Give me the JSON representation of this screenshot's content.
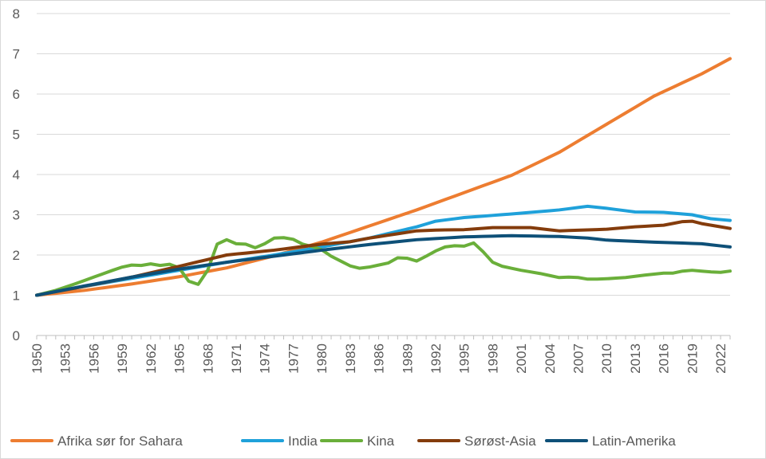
{
  "chart_data": {
    "type": "line",
    "title": "",
    "xlabel": "",
    "ylabel": "",
    "ylim": [
      0,
      8
    ],
    "yticks": [
      0,
      1,
      2,
      3,
      4,
      5,
      6,
      7,
      8
    ],
    "grid": "horizontal",
    "legend_position": "bottom",
    "x_start": 1950,
    "x_end": 2023,
    "x_tick_labels": [
      "1950",
      "1953",
      "1956",
      "1959",
      "1962",
      "1965",
      "1968",
      "1971",
      "1974",
      "1977",
      "1980",
      "1983",
      "1986",
      "1989",
      "1992",
      "1995",
      "1998",
      "2001",
      "2004",
      "2007",
      "2010",
      "2013",
      "2016",
      "2019",
      "2022"
    ],
    "series": [
      {
        "name": "Afrika sør for Sahara",
        "color": "#ED7D31",
        "anchors": [
          [
            1950,
            1.0
          ],
          [
            1955,
            1.12
          ],
          [
            1960,
            1.28
          ],
          [
            1965,
            1.46
          ],
          [
            1970,
            1.68
          ],
          [
            1975,
            1.98
          ],
          [
            1980,
            2.32
          ],
          [
            1985,
            2.72
          ],
          [
            1990,
            3.12
          ],
          [
            1995,
            3.55
          ],
          [
            2000,
            3.98
          ],
          [
            2005,
            4.55
          ],
          [
            2010,
            5.25
          ],
          [
            2015,
            5.95
          ],
          [
            2020,
            6.5
          ],
          [
            2023,
            6.88
          ]
        ]
      },
      {
        "name": "India",
        "color": "#1FA1DA",
        "anchors": [
          [
            1950,
            1.0
          ],
          [
            1955,
            1.22
          ],
          [
            1960,
            1.42
          ],
          [
            1965,
            1.62
          ],
          [
            1970,
            1.82
          ],
          [
            1975,
            2.0
          ],
          [
            1980,
            2.2
          ],
          [
            1985,
            2.42
          ],
          [
            1990,
            2.7
          ],
          [
            1992,
            2.84
          ],
          [
            1995,
            2.93
          ],
          [
            2000,
            3.02
          ],
          [
            2005,
            3.12
          ],
          [
            2008,
            3.21
          ],
          [
            2010,
            3.16
          ],
          [
            2013,
            3.07
          ],
          [
            2016,
            3.06
          ],
          [
            2019,
            3.0
          ],
          [
            2021,
            2.9
          ],
          [
            2023,
            2.86
          ]
        ]
      },
      {
        "name": "Kina",
        "color": "#6AAF3A",
        "anchors": [
          [
            1950,
            1.0
          ],
          [
            1952,
            1.12
          ],
          [
            1954,
            1.28
          ],
          [
            1956,
            1.45
          ],
          [
            1958,
            1.62
          ],
          [
            1959,
            1.7
          ],
          [
            1960,
            1.75
          ],
          [
            1961,
            1.74
          ],
          [
            1962,
            1.78
          ],
          [
            1963,
            1.74
          ],
          [
            1964,
            1.77
          ],
          [
            1965,
            1.68
          ],
          [
            1966,
            1.35
          ],
          [
            1967,
            1.27
          ],
          [
            1968,
            1.62
          ],
          [
            1969,
            2.27
          ],
          [
            1970,
            2.38
          ],
          [
            1971,
            2.28
          ],
          [
            1972,
            2.27
          ],
          [
            1973,
            2.18
          ],
          [
            1974,
            2.28
          ],
          [
            1975,
            2.42
          ],
          [
            1976,
            2.43
          ],
          [
            1977,
            2.39
          ],
          [
            1978,
            2.27
          ],
          [
            1979,
            2.21
          ],
          [
            1980,
            2.13
          ],
          [
            1981,
            1.97
          ],
          [
            1982,
            1.85
          ],
          [
            1983,
            1.73
          ],
          [
            1984,
            1.67
          ],
          [
            1985,
            1.7
          ],
          [
            1986,
            1.75
          ],
          [
            1987,
            1.8
          ],
          [
            1988,
            1.93
          ],
          [
            1989,
            1.92
          ],
          [
            1990,
            1.85
          ],
          [
            1991,
            1.97
          ],
          [
            1992,
            2.1
          ],
          [
            1993,
            2.2
          ],
          [
            1994,
            2.23
          ],
          [
            1995,
            2.22
          ],
          [
            1996,
            2.3
          ],
          [
            1997,
            2.08
          ],
          [
            1998,
            1.82
          ],
          [
            1999,
            1.72
          ],
          [
            2000,
            1.67
          ],
          [
            2001,
            1.62
          ],
          [
            2003,
            1.54
          ],
          [
            2005,
            1.44
          ],
          [
            2006,
            1.45
          ],
          [
            2007,
            1.44
          ],
          [
            2008,
            1.4
          ],
          [
            2009,
            1.4
          ],
          [
            2010,
            1.41
          ],
          [
            2012,
            1.44
          ],
          [
            2014,
            1.5
          ],
          [
            2016,
            1.55
          ],
          [
            2017,
            1.55
          ],
          [
            2018,
            1.6
          ],
          [
            2019,
            1.62
          ],
          [
            2020,
            1.6
          ],
          [
            2021,
            1.58
          ],
          [
            2022,
            1.57
          ],
          [
            2023,
            1.6
          ]
        ]
      },
      {
        "name": "Sørøst-Asia",
        "color": "#843C0C",
        "anchors": [
          [
            1950,
            1.0
          ],
          [
            1955,
            1.22
          ],
          [
            1960,
            1.45
          ],
          [
            1965,
            1.72
          ],
          [
            1970,
            2.0
          ],
          [
            1975,
            2.12
          ],
          [
            1980,
            2.27
          ],
          [
            1983,
            2.33
          ],
          [
            1985,
            2.42
          ],
          [
            1990,
            2.6
          ],
          [
            1992,
            2.62
          ],
          [
            1995,
            2.63
          ],
          [
            1998,
            2.68
          ],
          [
            2002,
            2.68
          ],
          [
            2005,
            2.6
          ],
          [
            2010,
            2.64
          ],
          [
            2013,
            2.7
          ],
          [
            2016,
            2.74
          ],
          [
            2018,
            2.83
          ],
          [
            2019,
            2.84
          ],
          [
            2020,
            2.78
          ],
          [
            2023,
            2.66
          ]
        ]
      },
      {
        "name": "Latin-Amerika",
        "color": "#0E5078",
        "anchors": [
          [
            1950,
            1.0
          ],
          [
            1955,
            1.23
          ],
          [
            1960,
            1.45
          ],
          [
            1965,
            1.65
          ],
          [
            1970,
            1.82
          ],
          [
            1975,
            1.97
          ],
          [
            1980,
            2.12
          ],
          [
            1985,
            2.26
          ],
          [
            1990,
            2.38
          ],
          [
            1995,
            2.45
          ],
          [
            2000,
            2.48
          ],
          [
            2005,
            2.46
          ],
          [
            2008,
            2.42
          ],
          [
            2010,
            2.37
          ],
          [
            2015,
            2.32
          ],
          [
            2020,
            2.28
          ],
          [
            2023,
            2.2
          ]
        ]
      }
    ]
  }
}
